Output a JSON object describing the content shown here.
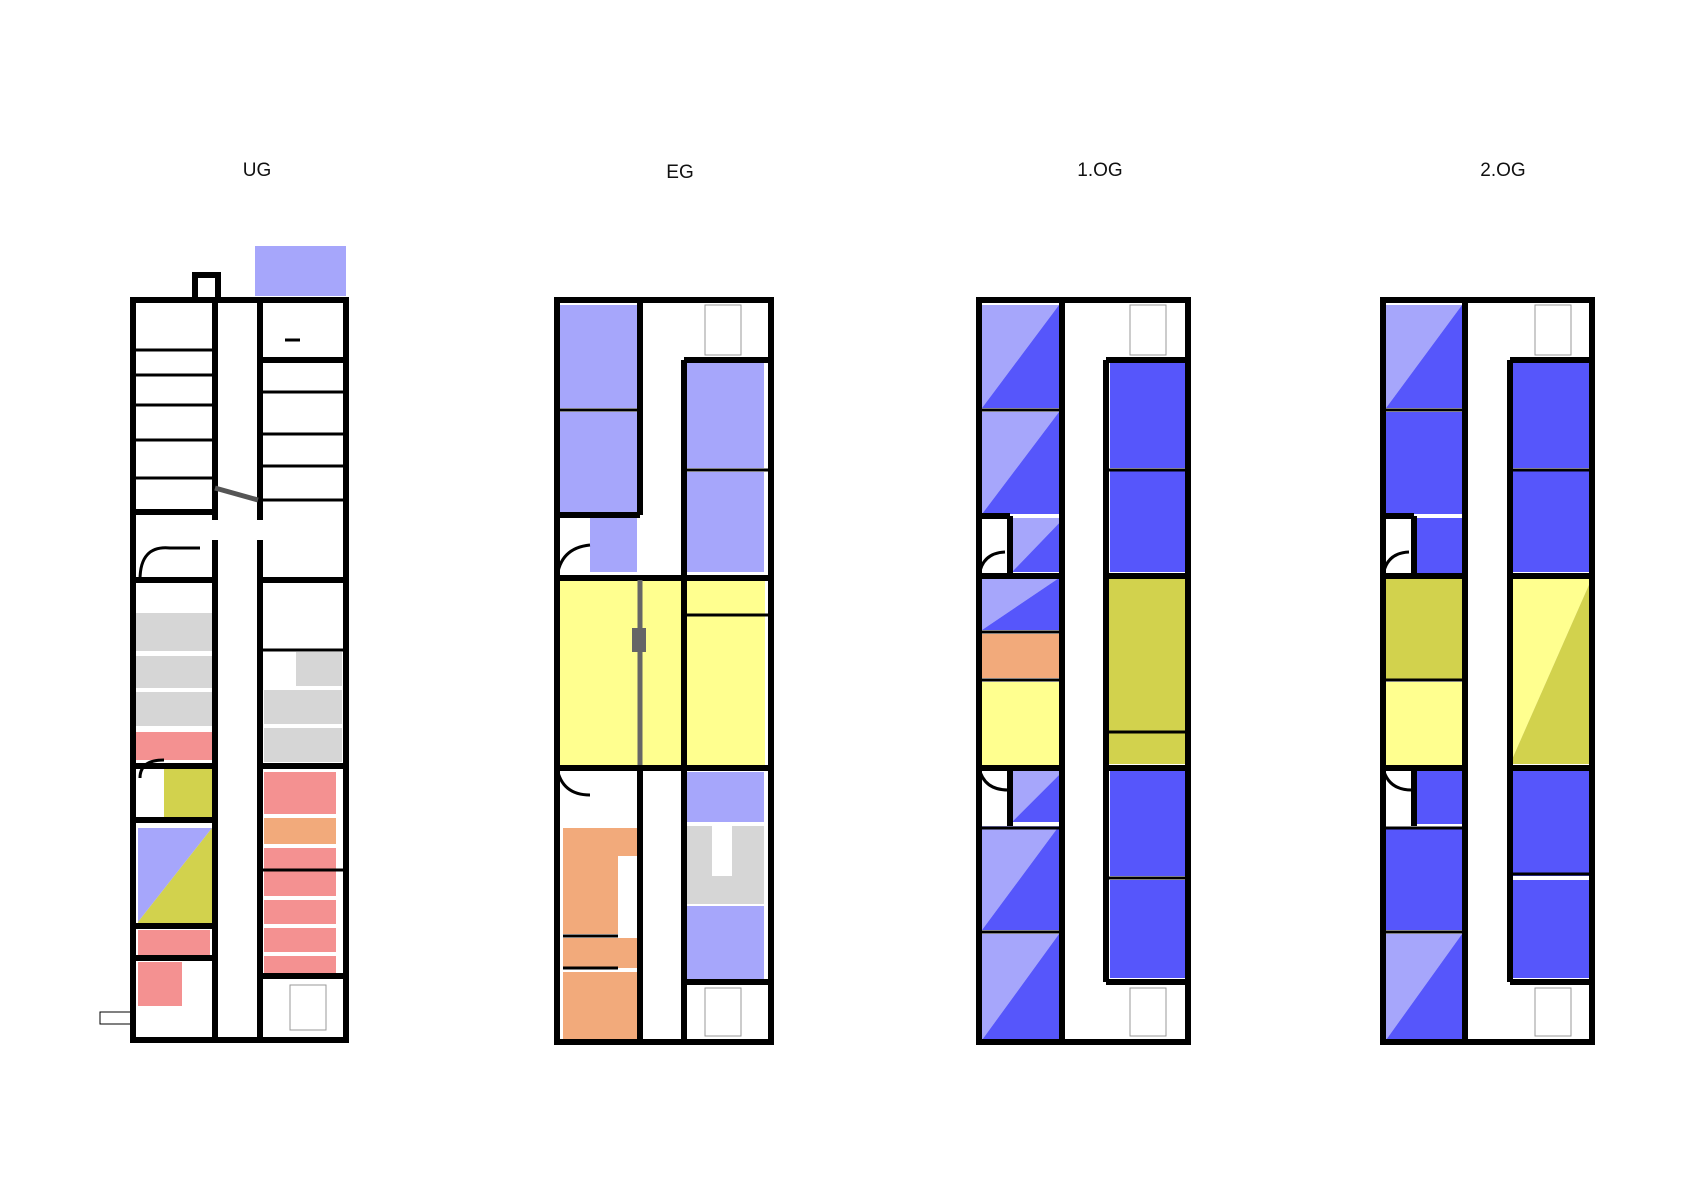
{
  "floors": [
    {
      "id": "ug",
      "label": "UG"
    },
    {
      "id": "eg",
      "label": "EG"
    },
    {
      "id": "og1",
      "label": "1.OG"
    },
    {
      "id": "og2",
      "label": "2.OG"
    }
  ],
  "palette": {
    "wall": "#000000",
    "light_blue": "#a6a6fb",
    "blue": "#5656fb",
    "light_yellow": "#ffff8f",
    "olive": "#d2d24d",
    "gray": "#d6d6d6",
    "salmon": "#f49191",
    "orange": "#f2aa7b"
  }
}
